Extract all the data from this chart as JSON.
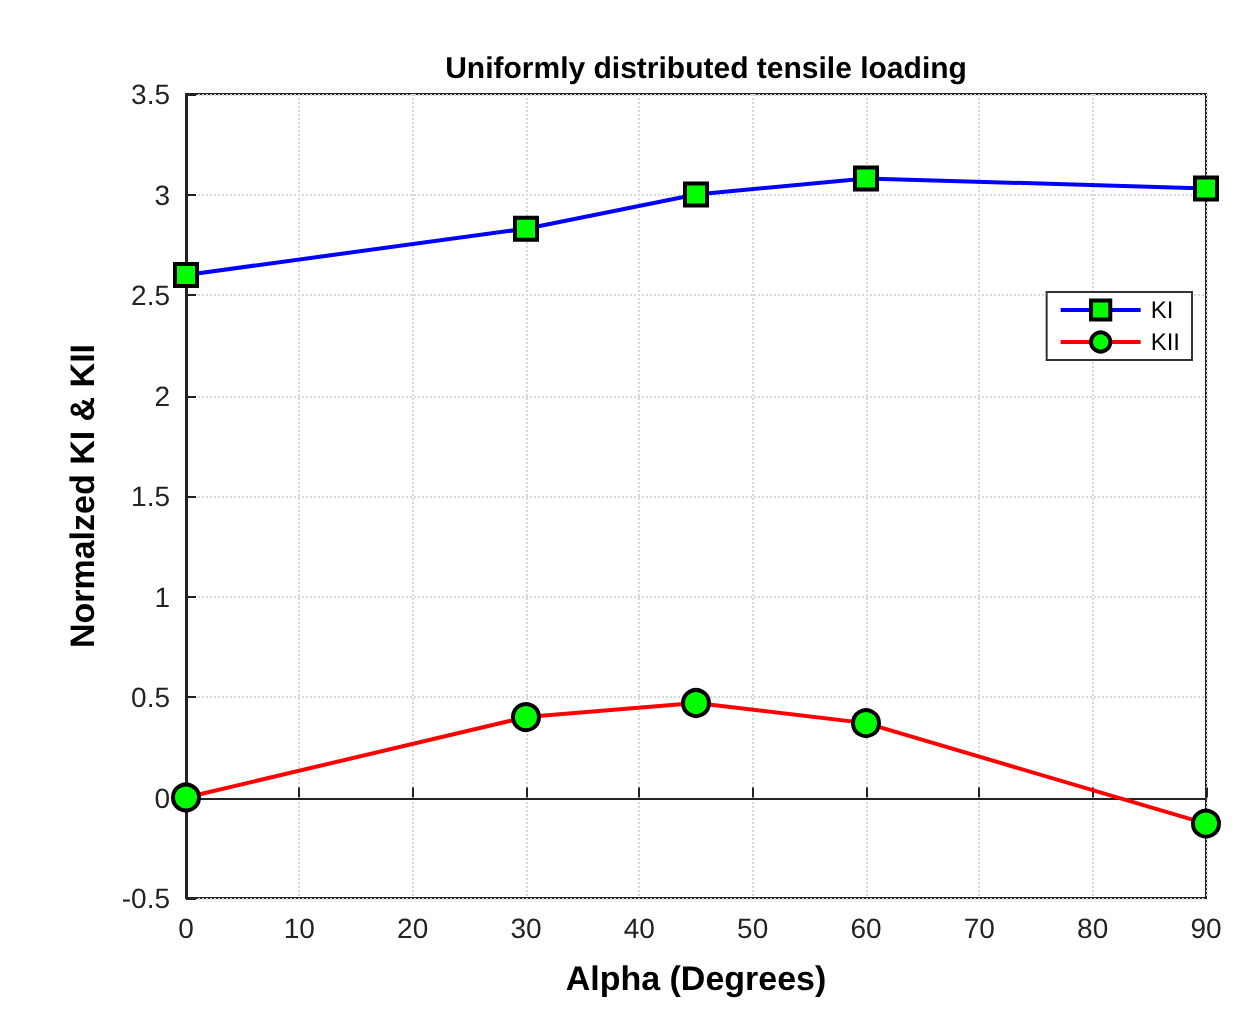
{
  "chart_data": {
    "type": "line",
    "title": "Uniformly distributed tensile loading",
    "xlabel": "Alpha (Degrees)",
    "ylabel": "Normalzed KI & KII",
    "x": [
      0,
      30,
      45,
      60,
      90
    ],
    "series": [
      {
        "name": "KI",
        "color": "#0000ff",
        "marker": "square",
        "values": [
          2.6,
          2.83,
          3.0,
          3.08,
          3.03
        ]
      },
      {
        "name": "KII",
        "color": "#ff0000",
        "marker": "circle",
        "values": [
          0,
          0.4,
          0.47,
          0.37,
          -0.13
        ]
      }
    ],
    "xlim": [
      0,
      90
    ],
    "xticks": [
      0,
      10,
      20,
      30,
      40,
      50,
      60,
      70,
      80,
      90
    ],
    "ylim": [
      -0.5,
      3.5
    ],
    "yticks": [
      -0.5,
      0,
      0.5,
      1,
      1.5,
      2,
      2.5,
      3,
      3.5
    ],
    "grid": true,
    "legend": "right",
    "line_style": "solid"
  }
}
